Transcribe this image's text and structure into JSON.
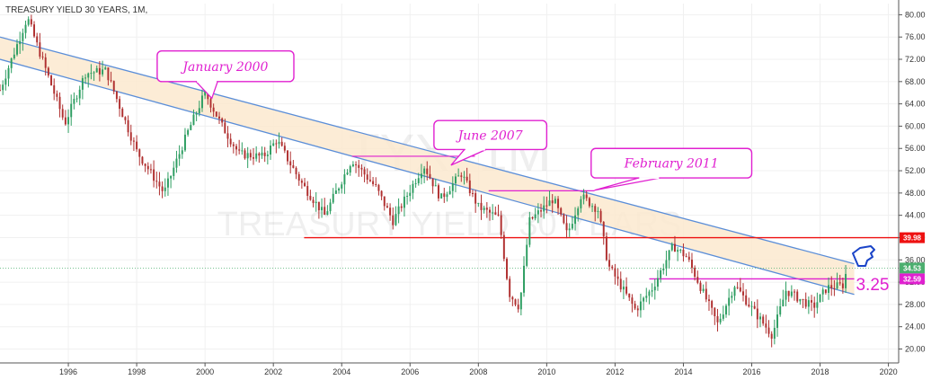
{
  "title": "TREASURY YIELD 30 YEARS, 1M,",
  "watermark": {
    "symbol": "TYX, 1M",
    "name": "TREASURY YIELD 30 YEARS"
  },
  "colors": {
    "up": "#2e9e62",
    "down": "#b03030",
    "channel_line": "#5b8ed8",
    "channel_fill": "#fbe9cf",
    "resistance": "#ee1111",
    "support": "#e020d0",
    "current_price": "#4caf6f",
    "cursor_icon": "#1a44c8"
  },
  "chart_data": {
    "type": "candlestick",
    "xlim": [
      1994.0,
      2020.3
    ],
    "ylim": [
      17.5,
      82
    ],
    "x_ticks": [
      1996,
      1998,
      2000,
      2002,
      2004,
      2006,
      2008,
      2010,
      2012,
      2014,
      2016,
      2018,
      2020
    ],
    "y_ticks": [
      20,
      24,
      28,
      32,
      36,
      40,
      44,
      48,
      52,
      56,
      60,
      64,
      68,
      72,
      76,
      80
    ],
    "anchors": [
      [
        1994.0,
        66.5
      ],
      [
        1994.8,
        79.5
      ],
      [
        1995.9,
        60.5
      ],
      [
        1996.5,
        69.5
      ],
      [
        1997.1,
        70.0
      ],
      [
        1998.0,
        55.5
      ],
      [
        1998.8,
        48.0
      ],
      [
        1999.5,
        59.0
      ],
      [
        2000.0,
        66.0
      ],
      [
        2000.5,
        60.0
      ],
      [
        2001.0,
        55.0
      ],
      [
        2001.7,
        54.5
      ],
      [
        2002.1,
        57.5
      ],
      [
        2002.8,
        50.0
      ],
      [
        2003.5,
        44.0
      ],
      [
        2004.3,
        54.0
      ],
      [
        2005.0,
        49.0
      ],
      [
        2005.5,
        43.0
      ],
      [
        2006.4,
        53.0
      ],
      [
        2006.9,
        47.0
      ],
      [
        2007.5,
        51.5
      ],
      [
        2008.0,
        45.5
      ],
      [
        2008.6,
        43.5
      ],
      [
        2008.9,
        30.0
      ],
      [
        2009.2,
        27.5
      ],
      [
        2009.5,
        43.0
      ],
      [
        2010.2,
        47.0
      ],
      [
        2010.6,
        40.5
      ],
      [
        2011.0,
        47.5
      ],
      [
        2011.5,
        45.0
      ],
      [
        2011.8,
        35.0
      ],
      [
        2012.6,
        27.0
      ],
      [
        2013.1,
        31.0
      ],
      [
        2013.7,
        38.5
      ],
      [
        2014.1,
        36.5
      ],
      [
        2015.0,
        24.5
      ],
      [
        2015.5,
        31.5
      ],
      [
        2016.1,
        26.5
      ],
      [
        2016.6,
        22.5
      ],
      [
        2017.0,
        30.5
      ],
      [
        2017.8,
        27.5
      ],
      [
        2018.2,
        31.0
      ],
      [
        2018.7,
        31.5
      ],
      [
        2018.78,
        34.53
      ]
    ],
    "channel": {
      "upper": [
        [
          1994.0,
          76.0
        ],
        [
          2019.0,
          35.3
        ]
      ],
      "lower": [
        [
          1994.0,
          72.0
        ],
        [
          2019.0,
          29.8
        ]
      ]
    },
    "resistance_line": {
      "level": 39.98,
      "from": 2002.9
    },
    "support_line": {
      "level": 32.59,
      "from": 2013.0,
      "to": 2019.0
    },
    "last_price": 34.53,
    "price_tags": [
      "39.98",
      "34.53",
      "32.59"
    ],
    "annotations": [
      {
        "text": "January 2000",
        "box_x": [
          1998.6,
          2002.6
        ],
        "box_y": [
          73.5,
          68.0
        ],
        "tip": [
          2000.2,
          65.0
        ]
      },
      {
        "text": "June 2007",
        "box_x": [
          2006.7,
          2010.0
        ],
        "box_y": [
          61.0,
          55.8
        ],
        "tip": [
          2007.2,
          53.0
        ]
      },
      {
        "text": "February 2011",
        "box_x": [
          2011.3,
          2016.0
        ],
        "box_y": [
          56.0,
          50.7
        ],
        "tip": [
          2011.4,
          48.5
        ]
      }
    ],
    "highlight_segments": [
      {
        "from": 2004.3,
        "to": 2007.9,
        "level": 54.6
      },
      {
        "from": 2008.3,
        "to": 2011.4,
        "level": 48.4
      }
    ],
    "side_label": "3.25"
  }
}
